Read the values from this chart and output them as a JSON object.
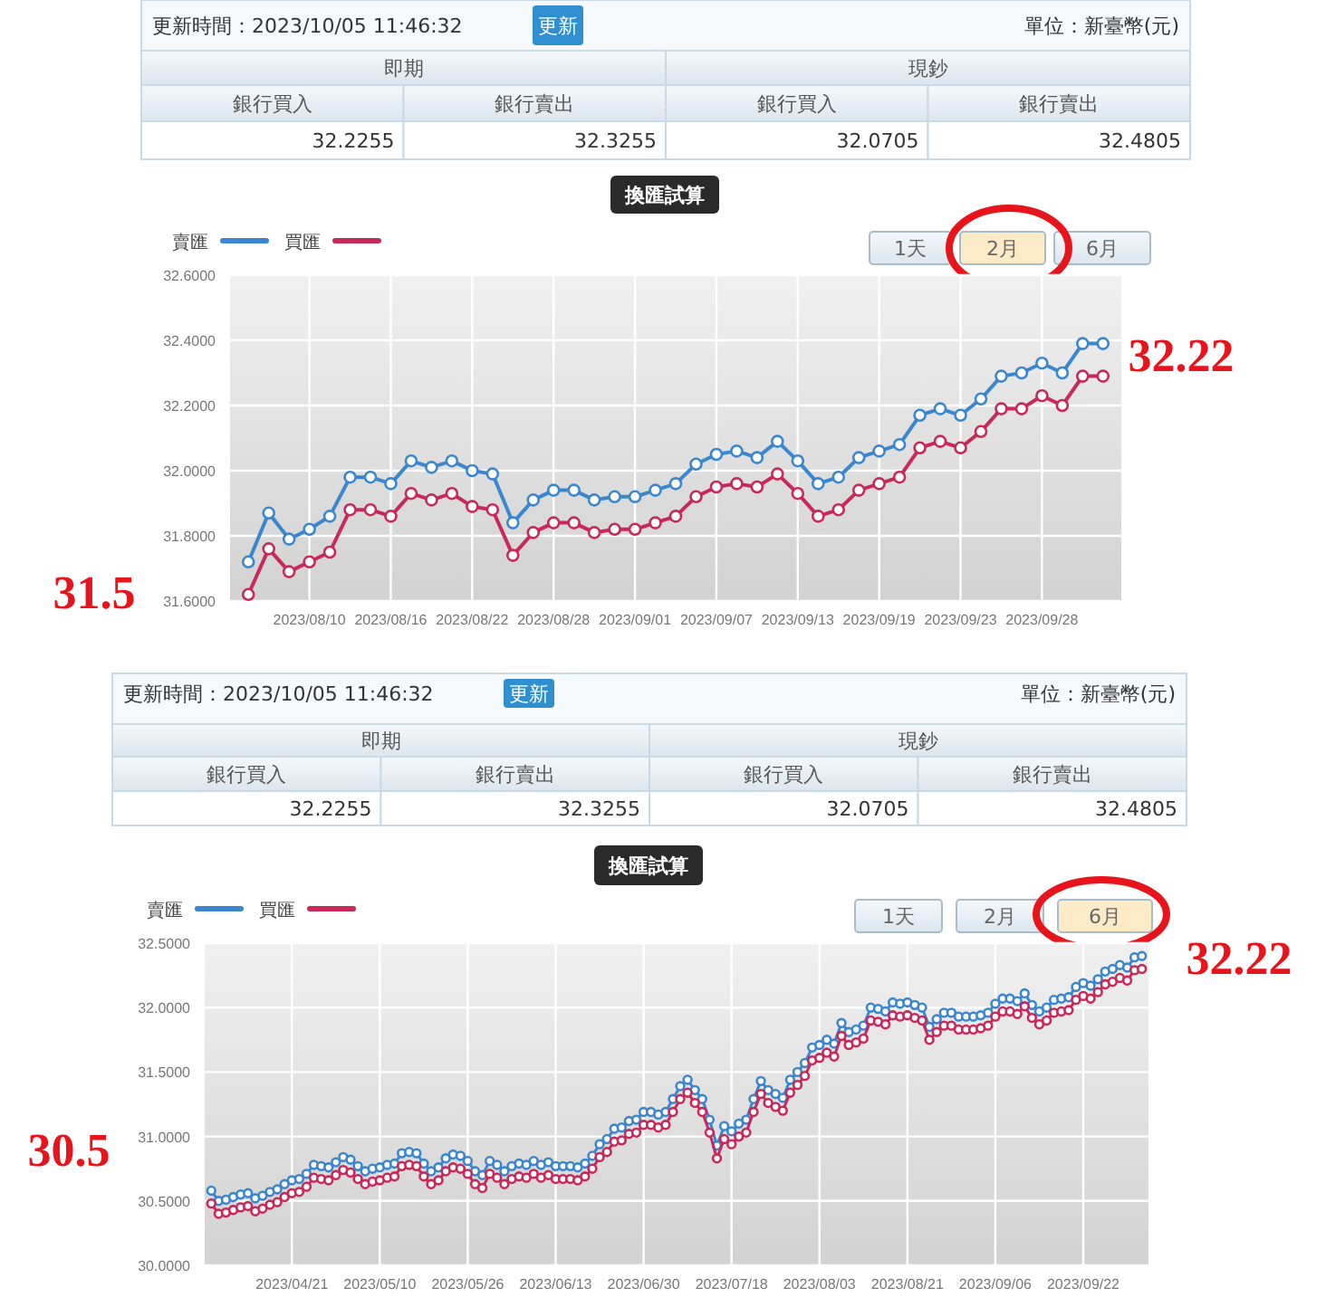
{
  "chart_data": [
    {
      "type": "other",
      "annotations": [
        "更新時間：2023/10/05 11:46:32",
        "更新",
        "單位：新臺幣(元)",
        "即期",
        "現鈔",
        "銀行買入",
        "銀行賣出",
        "銀行買入",
        "銀行賣出",
        "32.2255",
        "32.3255",
        "32.0705",
        "32.4805",
        "換匯試算",
        "1天",
        "2月",
        "6月"
      ]
    },
    {
      "type": "line",
      "categories": [
        null,
        null,
        null,
        "2023/08/10",
        null,
        null,
        null,
        "2023/08/16",
        null,
        null,
        null,
        "2023/08/22",
        null,
        null,
        null,
        "2023/08/28",
        null,
        null,
        null,
        "2023/09/01",
        null,
        null,
        null,
        "2023/09/07",
        null,
        null,
        null,
        "2023/09/13",
        null,
        null,
        null,
        "2023/09/19",
        null,
        null,
        null,
        "2023/09/23",
        null,
        null,
        null,
        "2023/09/28",
        null,
        null,
        null
      ],
      "series": [
        {
          "name": "賣匯",
          "color": "#3b87cf",
          "values": [
            31.72,
            31.87,
            31.79,
            31.82,
            31.86,
            31.98,
            31.98,
            31.96,
            32.03,
            32.01,
            32.03,
            32.0,
            31.99,
            31.84,
            31.91,
            31.94,
            31.94,
            31.91,
            31.92,
            31.92,
            31.94,
            31.96,
            32.02,
            32.05,
            32.06,
            32.04,
            32.09,
            32.03,
            31.96,
            31.98,
            32.04,
            32.06,
            32.08,
            32.17,
            32.19,
            32.17,
            32.22,
            32.29,
            32.3,
            32.33,
            32.3,
            32.39,
            32.39
          ]
        },
        {
          "name": "買匯",
          "color": "#c8285a",
          "values": [
            31.62,
            31.76,
            31.69,
            31.72,
            31.75,
            31.88,
            31.88,
            31.86,
            31.93,
            31.91,
            31.93,
            31.89,
            31.88,
            31.74,
            31.81,
            31.84,
            31.84,
            31.81,
            31.82,
            31.82,
            31.84,
            31.86,
            31.92,
            31.95,
            31.96,
            31.95,
            31.99,
            31.93,
            31.86,
            31.88,
            31.94,
            31.96,
            31.98,
            32.07,
            32.09,
            32.07,
            32.12,
            32.19,
            32.19,
            32.23,
            32.2,
            32.29,
            32.29
          ]
        }
      ],
      "ylim": [
        31.6,
        32.6
      ],
      "yticks": [
        {
          "value": 31.6,
          "label": "31.6000"
        },
        {
          "value": 31.8,
          "label": "31.8000"
        },
        {
          "value": 32.0,
          "label": "32.0000"
        },
        {
          "value": 32.2,
          "label": "32.2000"
        },
        {
          "value": 32.4,
          "label": "32.4000"
        },
        {
          "value": 32.6,
          "label": "32.6000"
        }
      ],
      "grid": true,
      "legend": "top left",
      "marker": "circle",
      "annotations": [
        "31.5",
        "32.22"
      ]
    },
    {
      "type": "other",
      "annotations": [
        "更新時間：2023/10/05 11:46:32",
        "更新",
        "單位：新臺幣(元)",
        "即期",
        "現鈔",
        "銀行買入",
        "銀行賣出",
        "銀行買入",
        "銀行賣出",
        "32.2255",
        "32.3255",
        "32.0705",
        "32.4805",
        "換匯試算",
        "1天",
        "2月",
        "6月"
      ]
    },
    {
      "type": "line",
      "categories": [
        null,
        null,
        null,
        null,
        null,
        null,
        null,
        null,
        null,
        null,
        null,
        "2023/04/21",
        null,
        null,
        null,
        null,
        null,
        null,
        null,
        null,
        null,
        null,
        null,
        "2023/05/10",
        null,
        null,
        null,
        null,
        null,
        null,
        null,
        null,
        null,
        null,
        null,
        "2023/05/26",
        null,
        null,
        null,
        null,
        null,
        null,
        null,
        null,
        null,
        null,
        null,
        "2023/06/13",
        null,
        null,
        null,
        null,
        null,
        null,
        null,
        null,
        null,
        null,
        null,
        "2023/06/30",
        null,
        null,
        null,
        null,
        null,
        null,
        null,
        null,
        null,
        null,
        null,
        "2023/07/18",
        null,
        null,
        null,
        null,
        null,
        null,
        null,
        null,
        null,
        null,
        null,
        "2023/08/03",
        null,
        null,
        null,
        null,
        null,
        null,
        null,
        null,
        null,
        null,
        null,
        "2023/08/21",
        null,
        null,
        null,
        null,
        null,
        null,
        null,
        null,
        null,
        null,
        null,
        "2023/09/06",
        null,
        null,
        null,
        null,
        null,
        null,
        null,
        null,
        null,
        null,
        null,
        "2023/09/22",
        null,
        null,
        null,
        null,
        null,
        null,
        null,
        null
      ],
      "series": [
        {
          "name": "賣匯",
          "color": "#3b87cf",
          "values": [
            30.58,
            30.5,
            30.51,
            30.53,
            30.55,
            30.56,
            30.52,
            30.54,
            30.57,
            30.59,
            30.63,
            30.66,
            30.67,
            30.71,
            30.78,
            30.77,
            30.76,
            30.8,
            30.84,
            30.82,
            30.77,
            30.73,
            30.75,
            30.76,
            30.78,
            30.79,
            30.87,
            30.88,
            30.87,
            30.79,
            30.73,
            30.76,
            30.83,
            30.86,
            30.85,
            30.81,
            30.73,
            30.7,
            30.81,
            30.78,
            30.73,
            30.77,
            30.79,
            30.78,
            30.81,
            30.78,
            30.8,
            30.77,
            30.77,
            30.77,
            30.76,
            30.79,
            30.85,
            30.94,
            30.98,
            31.06,
            31.07,
            31.12,
            31.13,
            31.19,
            31.19,
            31.17,
            31.19,
            31.29,
            31.39,
            31.44,
            31.36,
            31.29,
            31.13,
            30.93,
            31.08,
            31.04,
            31.1,
            31.13,
            31.29,
            31.43,
            31.36,
            31.33,
            31.3,
            31.44,
            31.5,
            31.57,
            31.69,
            31.71,
            31.75,
            31.72,
            31.88,
            31.81,
            31.83,
            31.86,
            32.0,
            31.99,
            31.97,
            32.04,
            32.03,
            32.04,
            32.02,
            32.0,
            31.85,
            31.91,
            31.96,
            31.96,
            31.93,
            31.93,
            31.93,
            31.94,
            31.96,
            32.03,
            32.07,
            32.07,
            32.05,
            32.11,
            32.02,
            31.97,
            32.0,
            32.06,
            32.07,
            32.08,
            32.16,
            32.19,
            32.17,
            32.22,
            32.28,
            32.3,
            32.33,
            32.31,
            32.39,
            32.4
          ]
        },
        {
          "name": "買匯",
          "color": "#c8285a",
          "values": [
            30.48,
            30.4,
            30.41,
            30.43,
            30.45,
            30.46,
            30.42,
            30.44,
            30.47,
            30.49,
            30.53,
            30.56,
            30.57,
            30.61,
            30.68,
            30.67,
            30.66,
            30.7,
            30.74,
            30.72,
            30.67,
            30.63,
            30.65,
            30.66,
            30.68,
            30.69,
            30.77,
            30.78,
            30.77,
            30.69,
            30.63,
            30.66,
            30.73,
            30.76,
            30.75,
            30.71,
            30.63,
            30.6,
            30.71,
            30.68,
            30.63,
            30.67,
            30.69,
            30.68,
            30.71,
            30.68,
            30.7,
            30.67,
            30.67,
            30.67,
            30.66,
            30.69,
            30.75,
            30.84,
            30.88,
            30.96,
            30.97,
            31.02,
            31.03,
            31.09,
            31.09,
            31.07,
            31.09,
            31.19,
            31.29,
            31.34,
            31.26,
            31.19,
            31.03,
            30.83,
            30.98,
            30.94,
            31.0,
            31.03,
            31.19,
            31.33,
            31.26,
            31.23,
            31.2,
            31.34,
            31.4,
            31.47,
            31.59,
            31.61,
            31.65,
            31.62,
            31.78,
            31.71,
            31.73,
            31.76,
            31.9,
            31.89,
            31.87,
            31.94,
            31.93,
            31.94,
            31.92,
            31.9,
            31.75,
            31.81,
            31.86,
            31.86,
            31.83,
            31.83,
            31.83,
            31.84,
            31.86,
            31.93,
            31.97,
            31.97,
            31.95,
            32.01,
            31.92,
            31.87,
            31.9,
            31.96,
            31.97,
            31.98,
            32.06,
            32.09,
            32.07,
            32.12,
            32.18,
            32.2,
            32.23,
            32.21,
            32.29,
            32.3
          ]
        }
      ],
      "ylim": [
        30.0,
        32.5
      ],
      "yticks": [
        {
          "value": 30.0,
          "label": "30.0000"
        },
        {
          "value": 30.5,
          "label": "30.5000"
        },
        {
          "value": 31.0,
          "label": "31.0000"
        },
        {
          "value": 31.5,
          "label": "31.5000"
        },
        {
          "value": 32.0,
          "label": "32.0000"
        },
        {
          "value": 32.5,
          "label": "32.5000"
        }
      ],
      "grid": true,
      "legend": "top left",
      "marker": "circle",
      "annotations": [
        "30.5",
        "32.22"
      ]
    }
  ]
}
